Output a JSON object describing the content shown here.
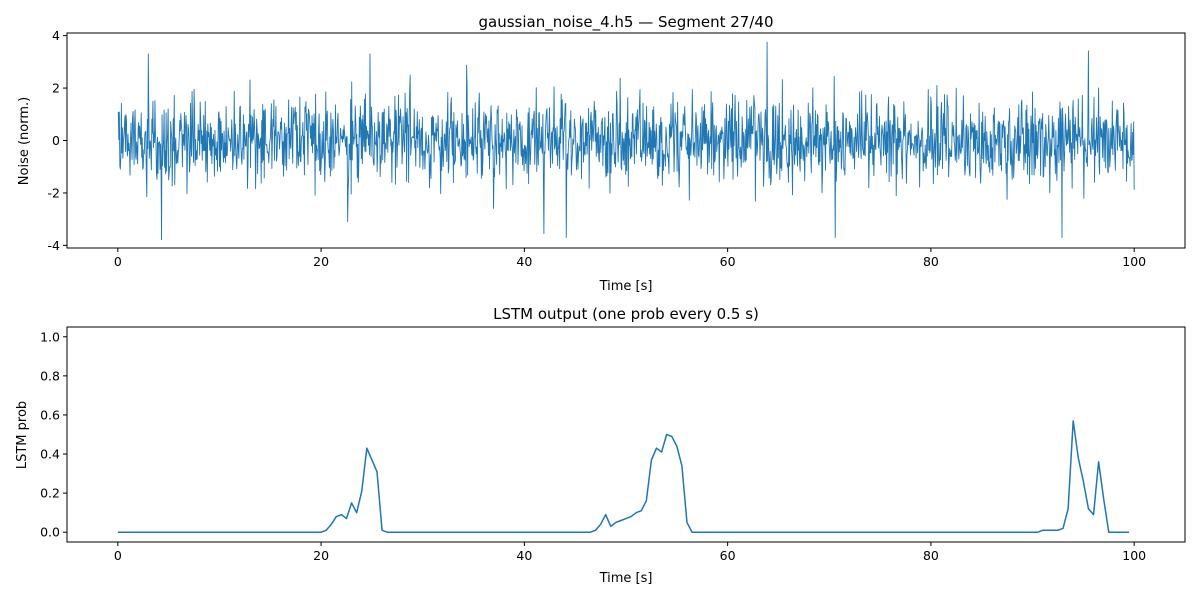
{
  "chart_data": [
    {
      "type": "line",
      "title": "gaussian_noise_4.h5 — Segment 27/40",
      "xlabel": "Time [s]",
      "ylabel": "Noise (norm.)",
      "xlim": [
        -5,
        105
      ],
      "ylim": [
        -4.1,
        4.1
      ],
      "xticks": [
        0,
        20,
        40,
        60,
        80,
        100
      ],
      "yticks": [
        -4,
        -2,
        0,
        2,
        4
      ],
      "grid": false,
      "color": "#1f77b4",
      "series": [
        {
          "description_only": false,
          "x_range": [
            0,
            100
          ],
          "samples": 2000,
          "distribution": "gaussian",
          "mean": 0,
          "std": 0.8,
          "extremes": [
            [
              4.3,
              -3.78
            ],
            [
              41.9,
              -3.55
            ],
            [
              44.1,
              -3.7
            ],
            [
              63.9,
              3.75
            ],
            [
              70.6,
              -3.7
            ],
            [
              92.9,
              -3.7
            ],
            [
              95.5,
              3.42
            ],
            [
              3.0,
              3.3
            ],
            [
              22.6,
              -3.1
            ]
          ]
        }
      ]
    },
    {
      "type": "line",
      "title": "LSTM output (one prob every 0.5 s)",
      "xlabel": "Time [s]",
      "ylabel": "LSTM prob",
      "xlim": [
        -5,
        105
      ],
      "ylim": [
        -0.05,
        1.05
      ],
      "xticks": [
        0,
        20,
        40,
        60,
        80,
        100
      ],
      "yticks": [
        0.0,
        0.2,
        0.4,
        0.6,
        0.8,
        1.0
      ],
      "grid": false,
      "color": "#1f77b4",
      "series": [
        {
          "x": [
            0,
            20.0,
            20.5,
            21.0,
            21.5,
            22.0,
            22.5,
            23.0,
            23.5,
            24.0,
            24.5,
            25.0,
            25.5,
            26.0,
            26.5,
            46.0,
            46.5,
            47.0,
            47.5,
            48.0,
            48.5,
            49.0,
            49.5,
            50.0,
            50.5,
            51.0,
            51.5,
            52.0,
            52.5,
            53.0,
            53.5,
            54.0,
            54.5,
            55.0,
            55.5,
            56.0,
            56.5,
            57.0,
            90.5,
            91.0,
            91.5,
            92.0,
            92.5,
            93.0,
            93.5,
            94.0,
            94.5,
            95.0,
            95.5,
            96.0,
            96.5,
            97.0,
            97.5,
            98.0,
            98.5,
            99.5
          ],
          "y": [
            0.0,
            0.0,
            0.01,
            0.04,
            0.08,
            0.09,
            0.07,
            0.15,
            0.1,
            0.21,
            0.43,
            0.37,
            0.31,
            0.01,
            0.0,
            0.0,
            0.0,
            0.01,
            0.04,
            0.09,
            0.03,
            0.05,
            0.06,
            0.07,
            0.08,
            0.1,
            0.11,
            0.16,
            0.37,
            0.43,
            0.41,
            0.5,
            0.49,
            0.44,
            0.34,
            0.05,
            0.0,
            0.0,
            0.0,
            0.01,
            0.01,
            0.01,
            0.01,
            0.02,
            0.12,
            0.57,
            0.38,
            0.26,
            0.12,
            0.09,
            0.36,
            0.17,
            0.0,
            0.0,
            0.0,
            0.0
          ]
        }
      ]
    }
  ]
}
